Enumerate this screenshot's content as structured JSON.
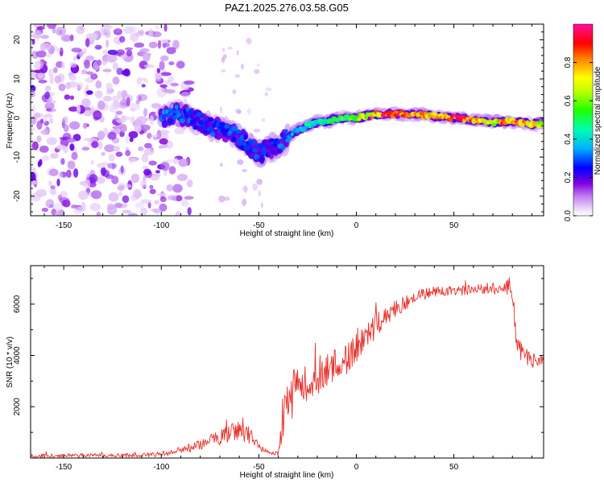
{
  "title": "PAZ1.2025.276.03.58.G05",
  "chart_data": [
    {
      "type": "heatmap",
      "name": "spectrogram",
      "xlabel": "Height of straight line (km)",
      "ylabel": "Frequency (Hz)",
      "xlim": [
        -167,
        96
      ],
      "ylim": [
        -25,
        24
      ],
      "xticks": [
        "-150",
        "-100",
        "-50",
        "0",
        "50"
      ],
      "xtick_values": [
        -150,
        -100,
        -50,
        0,
        50
      ],
      "yticks": [
        "-20",
        "-10",
        "0",
        "10",
        "20"
      ],
      "ytick_values": [
        -20,
        -10,
        0,
        10,
        20
      ],
      "colorbar": {
        "label": "Normalized spectral amplitude",
        "range": [
          0,
          1
        ],
        "ticks": [
          "0.0",
          "0.2",
          "0.4",
          "0.6",
          "0.8"
        ],
        "tick_values": [
          0.0,
          0.2,
          0.4,
          0.6,
          0.8
        ],
        "colors": [
          "#ffffff",
          "#e8ccfa",
          "#b46be6",
          "#7a19d8",
          "#0000ff",
          "#00c8ff",
          "#00ff60",
          "#b0ff00",
          "#ffff00",
          "#ff8000",
          "#ff0000",
          "#ff00a0"
        ]
      },
      "ridge": {
        "height_km": [
          -100,
          -95,
          -90,
          -85,
          -80,
          -75,
          -70,
          -65,
          -60,
          -55,
          -50,
          -45,
          -40,
          -35,
          -30,
          -25,
          -20,
          -15,
          -10,
          -5,
          0,
          5,
          10,
          15,
          20,
          30,
          40,
          50,
          60,
          70,
          80,
          90,
          96
        ],
        "frequency_hz": [
          0,
          0.5,
          1,
          0,
          -1,
          -2,
          -3,
          -4,
          -5,
          -7,
          -9,
          -8,
          -7,
          -5,
          -3,
          -2,
          -1,
          -1,
          0,
          0,
          0,
          0.5,
          1,
          1,
          1,
          1,
          0.5,
          0,
          -0.5,
          -1,
          -1,
          -1.5,
          -1.5
        ],
        "amplitude": [
          0.3,
          0.35,
          0.3,
          0.3,
          0.28,
          0.3,
          0.28,
          0.3,
          0.3,
          0.3,
          0.3,
          0.25,
          0.3,
          0.35,
          0.4,
          0.45,
          0.45,
          0.5,
          0.55,
          0.6,
          0.6,
          0.7,
          0.8,
          0.95,
          0.95,
          0.8,
          0.75,
          0.95,
          0.85,
          0.75,
          0.9,
          0.8,
          0.6
        ]
      },
      "noise_region_km": [
        -167,
        -90
      ]
    },
    {
      "type": "line",
      "name": "snr",
      "xlabel": "Height of straight line (km)",
      "ylabel": "SNR (10 * v/v)",
      "xlim": [
        -167,
        96
      ],
      "ylim": [
        0,
        7500
      ],
      "xticks": [
        "-150",
        "-100",
        "-50",
        "0",
        "50"
      ],
      "xtick_values": [
        -150,
        -100,
        -50,
        0,
        50
      ],
      "yticks": [
        "2000",
        "4000",
        "6000"
      ],
      "ytick_values": [
        2000,
        4000,
        6000
      ],
      "color": "#e8302a",
      "envelope": {
        "x": [
          -167,
          -120,
          -100,
          -90,
          -80,
          -70,
          -60,
          -55,
          -50,
          -45,
          -40,
          -38,
          -35,
          -30,
          -25,
          -20,
          -15,
          -10,
          -5,
          0,
          5,
          10,
          20,
          30,
          40,
          50,
          60,
          70,
          75,
          78,
          80,
          82,
          85,
          90,
          96
        ],
        "y": [
          100,
          100,
          150,
          300,
          500,
          800,
          1100,
          900,
          400,
          200,
          200,
          1500,
          2400,
          2600,
          3000,
          3200,
          3500,
          3600,
          3800,
          4300,
          4800,
          5200,
          5800,
          6300,
          6500,
          6500,
          6550,
          6600,
          6650,
          6700,
          6400,
          4800,
          4000,
          3800,
          3800
        ],
        "noise": [
          80,
          80,
          100,
          150,
          200,
          300,
          450,
          350,
          150,
          80,
          100,
          900,
          1000,
          1000,
          900,
          800,
          700,
          700,
          600,
          600,
          500,
          450,
          350,
          250,
          200,
          180,
          200,
          220,
          300,
          450,
          400,
          500,
          450,
          300,
          200
        ]
      }
    }
  ]
}
